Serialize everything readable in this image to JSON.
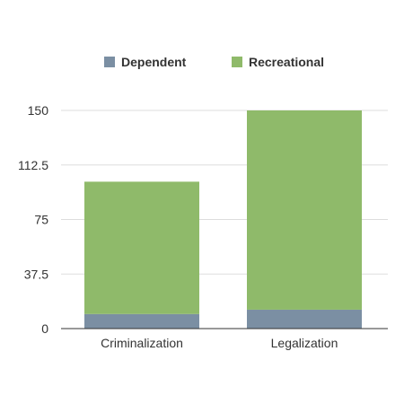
{
  "chart_data": {
    "type": "bar",
    "stacked": true,
    "categories": [
      "Criminalization",
      "Legalization"
    ],
    "series": [
      {
        "name": "Dependent",
        "values": [
          10,
          13
        ],
        "color": "#7b8fa3"
      },
      {
        "name": "Recreational",
        "values": [
          91,
          137
        ],
        "color": "#8fba6a"
      }
    ],
    "ylim": [
      0,
      150
    ],
    "yticks": [
      "0",
      "37.5",
      "75",
      "112.5",
      "150"
    ],
    "grid": true,
    "legend_position": "top"
  },
  "colors": {
    "grid": "#dddddd",
    "axis": "#333333"
  }
}
